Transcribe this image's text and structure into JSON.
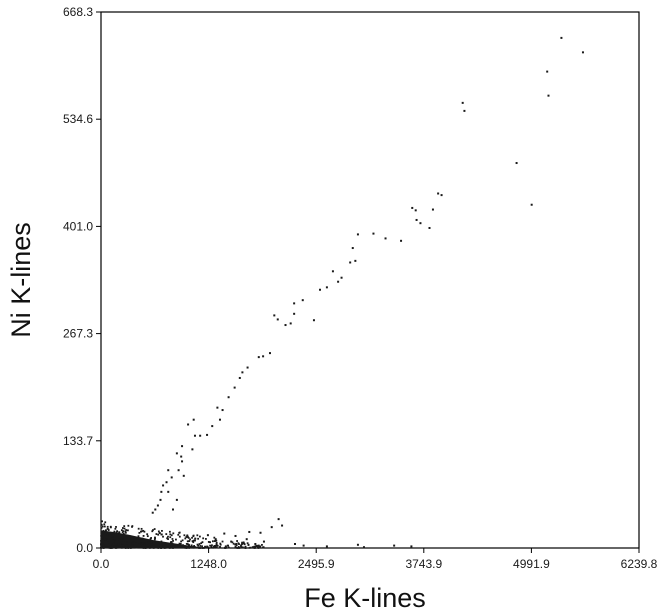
{
  "chart_data": {
    "type": "scatter",
    "title": "",
    "xlabel": "Fe K-lines",
    "ylabel": "Ni K-lines",
    "xlim": [
      0.0,
      6239.8
    ],
    "ylim": [
      0.0,
      668.3
    ],
    "xticks": [
      "0.0",
      "1248.0",
      "2495.9",
      "3743.9",
      "4991.9",
      "6239.8"
    ],
    "yticks": [
      "0.0",
      "133.7",
      "267.3",
      "401.0",
      "534.6",
      "668.3"
    ],
    "grid": false,
    "legend": "none",
    "marker_color": "#1a1a1a",
    "series": [
      {
        "points": [
          [
            5340,
            636
          ],
          [
            5590,
            618
          ],
          [
            5175,
            594
          ],
          [
            5190,
            564
          ],
          [
            4195,
            555
          ],
          [
            4215,
            545
          ],
          [
            4820,
            480
          ],
          [
            4995,
            428
          ],
          [
            3910,
            442
          ],
          [
            3950,
            440
          ],
          [
            3610,
            424
          ],
          [
            3650,
            421
          ],
          [
            3705,
            405
          ],
          [
            3850,
            422
          ],
          [
            3660,
            409
          ],
          [
            3810,
            399
          ],
          [
            2980,
            391
          ],
          [
            3160,
            392
          ],
          [
            3300,
            386
          ],
          [
            3480,
            383
          ],
          [
            2920,
            374
          ],
          [
            2890,
            356
          ],
          [
            2950,
            358
          ],
          [
            2690,
            345
          ],
          [
            2790,
            337
          ],
          [
            2540,
            322
          ],
          [
            2620,
            325
          ],
          [
            2750,
            332
          ],
          [
            2240,
            305
          ],
          [
            2340,
            309
          ],
          [
            2470,
            284
          ],
          [
            2240,
            292
          ],
          [
            2200,
            280
          ],
          [
            2140,
            278
          ],
          [
            2050,
            285
          ],
          [
            2010,
            290
          ],
          [
            1880,
            239
          ],
          [
            1960,
            243
          ],
          [
            1830,
            238
          ],
          [
            1700,
            225
          ],
          [
            1640,
            219
          ],
          [
            1610,
            212
          ],
          [
            1550,
            200
          ],
          [
            1480,
            188
          ],
          [
            1410,
            172
          ],
          [
            1350,
            175
          ],
          [
            1380,
            160
          ],
          [
            1290,
            152
          ],
          [
            1230,
            141
          ],
          [
            1150,
            140
          ],
          [
            1075,
            160
          ],
          [
            1010,
            154
          ],
          [
            1060,
            123
          ],
          [
            1090,
            140
          ],
          [
            940,
            127
          ],
          [
            930,
            114
          ],
          [
            880,
            118
          ],
          [
            900,
            97
          ],
          [
            940,
            108
          ],
          [
            960,
            90
          ],
          [
            780,
            97
          ],
          [
            780,
            70
          ],
          [
            820,
            88
          ],
          [
            760,
            82
          ],
          [
            720,
            78
          ],
          [
            700,
            70
          ],
          [
            690,
            60
          ],
          [
            660,
            53
          ],
          [
            630,
            48
          ],
          [
            880,
            60
          ],
          [
            835,
            48
          ],
          [
            600,
            44
          ],
          [
            2060,
            36
          ],
          [
            2100,
            28
          ],
          [
            1980,
            26
          ],
          [
            1850,
            19
          ],
          [
            1720,
            20
          ],
          [
            1560,
            15
          ],
          [
            1430,
            18
          ],
          [
            1690,
            11
          ],
          [
            1890,
            8
          ],
          [
            2250,
            5
          ],
          [
            2350,
            3
          ],
          [
            2620,
            2
          ],
          [
            2980,
            4
          ],
          [
            3050,
            1
          ],
          [
            3400,
            3
          ],
          [
            3600,
            2
          ],
          [
            1790,
            5
          ],
          [
            1510,
            8
          ],
          [
            1330,
            11
          ],
          [
            1240,
            16
          ]
        ]
      }
    ]
  }
}
